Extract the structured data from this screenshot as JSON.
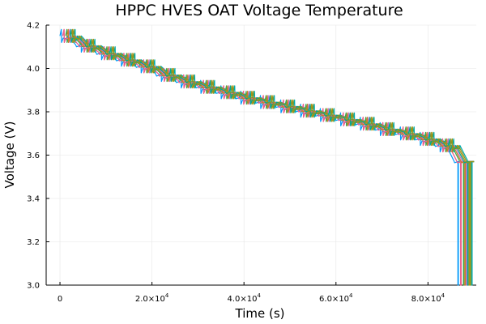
{
  "chart_data": {
    "type": "line",
    "title": "HPPC HVES OAT Voltage Temperature",
    "xlabel": "Time (s)",
    "ylabel": "Voltage (V)",
    "xlim": [
      -3000,
      90500
    ],
    "ylim": [
      3.0,
      4.2
    ],
    "grid": true,
    "legend": "none",
    "x_ticks": [
      {
        "value": 0,
        "mantissa": "0",
        "exponent": ""
      },
      {
        "value": 20000,
        "mantissa": "2.0×10",
        "exponent": "4"
      },
      {
        "value": 40000,
        "mantissa": "4.0×10",
        "exponent": "4"
      },
      {
        "value": 60000,
        "mantissa": "6.0×10",
        "exponent": "4"
      },
      {
        "value": 80000,
        "mantissa": "8.0×10",
        "exponent": "4"
      }
    ],
    "y_ticks": [
      {
        "value": 3.0,
        "label": "3.0"
      },
      {
        "value": 3.2,
        "label": "3.2"
      },
      {
        "value": 3.4,
        "label": "3.4"
      },
      {
        "value": 3.6,
        "label": "3.6"
      },
      {
        "value": 3.8,
        "label": "3.8"
      },
      {
        "value": 4.0,
        "label": "4.0"
      },
      {
        "value": 4.2,
        "label": "4.2"
      }
    ],
    "pulse_profile": {
      "times": [
        0,
        4300,
        8700,
        13000,
        17300,
        21700,
        26000,
        30300,
        34700,
        39000,
        43300,
        47700,
        52000,
        56300,
        60700,
        65000,
        69300,
        73700,
        78000,
        82300,
        86500
      ],
      "voltages": [
        4.15,
        4.105,
        4.07,
        4.04,
        4.01,
        3.97,
        3.94,
        3.915,
        3.89,
        3.865,
        3.845,
        3.825,
        3.805,
        3.785,
        3.765,
        3.745,
        3.72,
        3.7,
        3.675,
        3.645,
        3.57
      ],
      "final_voltage": 3.57,
      "cutoff_voltage": 3.0
    },
    "series": [
      {
        "color": "#009af9",
        "offset_s": 0
      },
      {
        "color": "#e26f46",
        "offset_s": 600
      },
      {
        "color": "#3ea44e",
        "offset_s": 1200
      },
      {
        "color": "#c271d2",
        "offset_s": 1800
      },
      {
        "color": "#ac8e18",
        "offset_s": 2400
      },
      {
        "color": "#00aaae",
        "offset_s": 3000
      },
      {
        "color": "#ed5e93",
        "offset_s": 600
      },
      {
        "color": "#c68125",
        "offset_s": 1500
      },
      {
        "color": "#00a98d",
        "offset_s": 2100
      },
      {
        "color": "#8e971d",
        "offset_s": 2700
      }
    ]
  }
}
